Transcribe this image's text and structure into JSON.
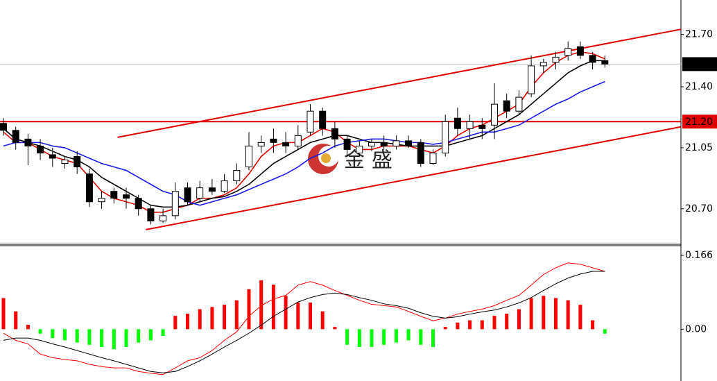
{
  "chart_data": [
    {
      "type": "candlestick",
      "up_color": "#ffffff",
      "down_color": "#000000",
      "edge_color": "#000000",
      "candles": [
        [
          21.19,
          21.22,
          21.12,
          21.15
        ],
        [
          21.15,
          21.17,
          21.04,
          21.08
        ],
        [
          21.1,
          21.13,
          20.95,
          21.06
        ],
        [
          21.06,
          21.1,
          20.98,
          21.02
        ],
        [
          21.01,
          21.05,
          20.94,
          20.99
        ],
        [
          20.96,
          21.0,
          20.93,
          20.98
        ],
        [
          21.0,
          21.03,
          20.9,
          20.94
        ],
        [
          20.9,
          20.93,
          20.71,
          20.74
        ],
        [
          20.74,
          20.8,
          20.7,
          20.76
        ],
        [
          20.8,
          20.82,
          20.73,
          20.76
        ],
        [
          20.78,
          20.82,
          20.7,
          20.76
        ],
        [
          20.76,
          20.78,
          20.66,
          20.7
        ],
        [
          20.7,
          20.72,
          20.61,
          20.63
        ],
        [
          20.63,
          20.7,
          20.62,
          20.66
        ],
        [
          20.66,
          20.85,
          20.64,
          20.8
        ],
        [
          20.82,
          20.85,
          20.72,
          20.74
        ],
        [
          20.76,
          20.86,
          20.74,
          20.82
        ],
        [
          20.82,
          20.87,
          20.78,
          20.8
        ],
        [
          20.8,
          20.9,
          20.79,
          20.86
        ],
        [
          20.86,
          20.96,
          20.84,
          20.92
        ],
        [
          20.94,
          21.14,
          20.92,
          21.06
        ],
        [
          21.06,
          21.12,
          21.02,
          21.08
        ],
        [
          21.1,
          21.16,
          21.02,
          21.08
        ],
        [
          21.08,
          21.14,
          21.02,
          21.06
        ],
        [
          21.06,
          21.18,
          21.04,
          21.12
        ],
        [
          21.14,
          21.3,
          21.12,
          21.26
        ],
        [
          21.26,
          21.28,
          21.12,
          21.16
        ],
        [
          21.16,
          21.2,
          21.05,
          21.1
        ],
        [
          21.1,
          21.12,
          21.0,
          21.04
        ],
        [
          21.02,
          21.09,
          21.0,
          21.06
        ],
        [
          21.06,
          21.1,
          21.03,
          21.08
        ],
        [
          21.08,
          21.12,
          21.04,
          21.06
        ],
        [
          21.06,
          21.12,
          21.04,
          21.09
        ],
        [
          21.09,
          21.12,
          21.05,
          21.06
        ],
        [
          21.08,
          21.1,
          20.94,
          20.96
        ],
        [
          20.96,
          21.04,
          20.95,
          21.02
        ],
        [
          21.02,
          21.24,
          21.0,
          21.2
        ],
        [
          21.22,
          21.28,
          21.12,
          21.16
        ],
        [
          21.16,
          21.24,
          21.1,
          21.2
        ],
        [
          21.18,
          21.22,
          21.1,
          21.16
        ],
        [
          21.18,
          21.42,
          21.1,
          21.3
        ],
        [
          21.32,
          21.36,
          21.22,
          21.26
        ],
        [
          21.26,
          21.38,
          21.24,
          21.34
        ],
        [
          21.36,
          21.58,
          21.34,
          21.52
        ],
        [
          21.52,
          21.56,
          21.48,
          21.54
        ],
        [
          21.54,
          21.6,
          21.5,
          21.57
        ],
        [
          21.58,
          21.66,
          21.55,
          21.62
        ],
        [
          21.63,
          21.66,
          21.56,
          21.58
        ],
        [
          21.58,
          21.6,
          21.5,
          21.54
        ],
        [
          21.55,
          21.58,
          21.51,
          21.53
        ]
      ],
      "series": [
        {
          "color": "#e00000",
          "values": [
            21.14,
            21.08,
            21.08,
            21.04,
            21.0,
            20.98,
            20.96,
            20.88,
            20.8,
            20.76,
            20.74,
            20.72,
            20.68,
            20.68,
            20.7,
            20.72,
            20.76,
            20.76,
            20.78,
            20.82,
            20.9,
            21.0,
            21.06,
            21.08,
            21.08,
            21.12,
            21.16,
            21.14,
            21.08,
            21.04,
            21.04,
            21.06,
            21.06,
            21.06,
            21.04,
            21.02,
            21.06,
            21.12,
            21.16,
            21.18,
            21.22,
            21.26,
            21.3,
            21.4,
            21.48,
            21.54,
            21.58,
            21.6,
            21.59,
            21.56
          ]
        },
        {
          "color": "#000000",
          "values": [
            21.16,
            21.1,
            21.08,
            21.06,
            21.03,
            21.0,
            20.98,
            20.94,
            20.88,
            20.84,
            20.8,
            20.76,
            20.72,
            20.71,
            20.71,
            20.72,
            20.74,
            20.76,
            20.77,
            20.8,
            20.84,
            20.9,
            20.96,
            21.0,
            21.04,
            21.08,
            21.1,
            21.12,
            21.12,
            21.1,
            21.08,
            21.08,
            21.07,
            21.06,
            21.06,
            21.06,
            21.06,
            21.08,
            21.1,
            21.12,
            21.16,
            21.2,
            21.24,
            21.3,
            21.36,
            21.42,
            21.48,
            21.52,
            21.55,
            21.55
          ]
        },
        {
          "color": "#1a1ae6",
          "values": [
            21.06,
            21.08,
            21.08,
            21.08,
            21.06,
            21.05,
            21.02,
            20.99,
            20.96,
            20.94,
            20.92,
            20.88,
            20.84,
            20.8,
            20.78,
            20.74,
            20.72,
            20.74,
            20.76,
            20.78,
            20.81,
            20.84,
            20.87,
            20.9,
            20.94,
            20.99,
            21.02,
            21.06,
            21.08,
            21.09,
            21.1,
            21.1,
            21.09,
            21.08,
            21.08,
            21.07,
            21.08,
            21.1,
            21.12,
            21.14,
            21.14,
            21.16,
            21.18,
            21.22,
            21.26,
            21.3,
            21.33,
            21.37,
            21.4,
            21.43
          ]
        }
      ],
      "trendlines": [
        {
          "color": "#e00000",
          "from": [
            9.3,
            21.11
          ],
          "to": [
            55.2,
            21.73
          ]
        },
        {
          "color": "#e00000",
          "from": [
            11.6,
            20.58
          ],
          "to": [
            55.2,
            21.17
          ]
        }
      ],
      "levels": [
        {
          "value": 21.53,
          "color": "#c0c0c0",
          "tag_color": "#000000"
        },
        {
          "value": 21.2,
          "label": "21.20",
          "color": "#e00000",
          "tag_color": "#e00000"
        }
      ],
      "watermark": "金盛",
      "ylim": [
        20.496,
        21.898
      ],
      "yticks": [
        {
          "value": 21.7,
          "label": "21.70"
        },
        {
          "value": 21.4,
          "label": "21.40"
        },
        {
          "value": 21.05,
          "label": "21.05"
        },
        {
          "value": 20.7,
          "label": "20.70"
        }
      ]
    },
    {
      "type": "macd",
      "positive_color": "#ff0000",
      "negative_color": "#00ff00",
      "values": [
        0.07,
        0.04,
        0.01,
        -0.01,
        -0.02,
        -0.025,
        -0.03,
        -0.035,
        -0.04,
        -0.045,
        -0.04,
        -0.03,
        -0.025,
        -0.015,
        0.03,
        0.035,
        0.045,
        0.05,
        0.055,
        0.065,
        0.09,
        0.11,
        0.1,
        0.075,
        0.06,
        0.06,
        0.04,
        0.005,
        -0.035,
        -0.04,
        -0.04,
        -0.035,
        -0.03,
        -0.025,
        -0.035,
        -0.04,
        0.005,
        0.015,
        0.02,
        0.02,
        0.03,
        0.035,
        0.045,
        0.07,
        0.075,
        0.07,
        0.065,
        0.055,
        0.02,
        -0.01
      ],
      "series": [
        {
          "color": "#ff0000",
          "values": [
            -0.009,
            -0.025,
            -0.033,
            -0.056,
            -0.064,
            -0.068,
            -0.071,
            -0.079,
            -0.084,
            -0.087,
            -0.087,
            -0.095,
            -0.099,
            -0.102,
            -0.087,
            -0.071,
            -0.064,
            -0.048,
            -0.025,
            -0.006,
            0.029,
            0.053,
            0.068,
            0.076,
            0.099,
            0.107,
            0.099,
            0.087,
            0.076,
            0.065,
            0.056,
            0.053,
            0.05,
            0.04,
            0.029,
            0.019,
            0.025,
            0.034,
            0.04,
            0.045,
            0.053,
            0.065,
            0.076,
            0.099,
            0.123,
            0.138,
            0.149,
            0.146,
            0.138,
            0.13
          ]
        },
        {
          "color": "#000000",
          "values": [
            -0.025,
            -0.02,
            -0.02,
            -0.025,
            -0.033,
            -0.04,
            -0.048,
            -0.056,
            -0.064,
            -0.071,
            -0.079,
            -0.087,
            -0.095,
            -0.098,
            -0.095,
            -0.084,
            -0.071,
            -0.056,
            -0.04,
            -0.025,
            -0.009,
            0.009,
            0.029,
            0.045,
            0.061,
            0.071,
            0.078,
            0.081,
            0.078,
            0.071,
            0.065,
            0.057,
            0.053,
            0.047,
            0.037,
            0.029,
            0.025,
            0.028,
            0.034,
            0.039,
            0.043,
            0.05,
            0.059,
            0.071,
            0.087,
            0.102,
            0.115,
            0.124,
            0.13,
            0.13
          ]
        }
      ],
      "ylim": [
        -0.1164,
        0.1877
      ],
      "yticks": [
        0.166,
        {
          "value": 0,
          "label": "0.00"
        }
      ]
    }
  ]
}
